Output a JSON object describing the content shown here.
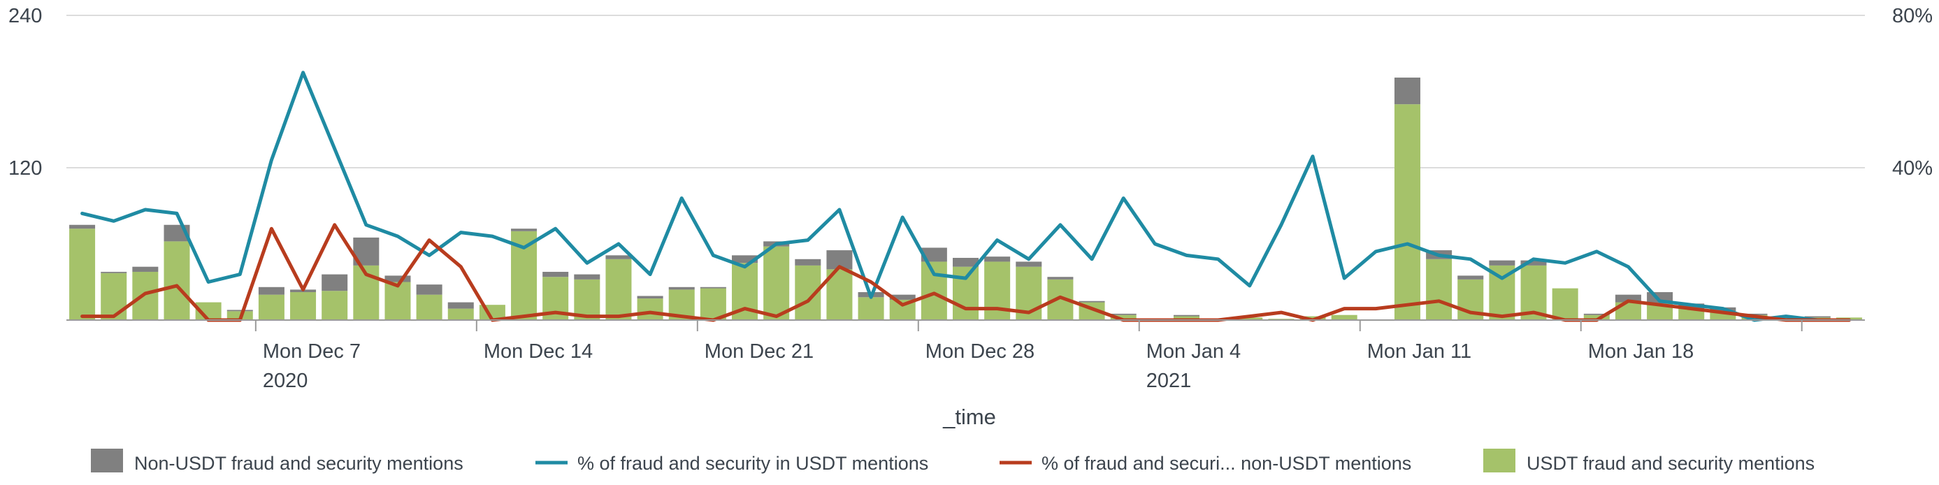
{
  "chart_data": {
    "type": "bar",
    "stacked": true,
    "xlabel": "_time",
    "x_ticks": [
      {
        "index": 6,
        "label": "Mon Dec 7",
        "sub": "2020"
      },
      {
        "index": 13,
        "label": "Mon Dec 14",
        "sub": ""
      },
      {
        "index": 20,
        "label": "Mon Dec 21",
        "sub": ""
      },
      {
        "index": 27,
        "label": "Mon Dec 28",
        "sub": ""
      },
      {
        "index": 34,
        "label": "Mon Jan 4",
        "sub": "2021"
      },
      {
        "index": 41,
        "label": "Mon Jan 11",
        "sub": ""
      },
      {
        "index": 48,
        "label": "Mon Jan 18",
        "sub": ""
      }
    ],
    "y_left": {
      "ticks": [
        "240",
        "120"
      ],
      "range": [
        0,
        240
      ]
    },
    "y_right": {
      "ticks": [
        "80%",
        "40%"
      ],
      "range": [
        0,
        80
      ]
    },
    "grid": true,
    "legend_position": "bottom",
    "legend": [
      {
        "label": "Non-USDT fraud and security mentions",
        "kind": "bar",
        "color": "#808080"
      },
      {
        "label": "% of fraud and security in USDT mentions",
        "kind": "line",
        "color": "#1f8ba3"
      },
      {
        "label": "% of fraud and securi... non-USDT mentions",
        "kind": "line",
        "color": "#b83c1e"
      },
      {
        "label": "USDT fraud and security mentions",
        "kind": "bar",
        "color": "#a5c26a"
      }
    ],
    "series": [
      {
        "name": "USDT fraud and security mentions",
        "axis": "left",
        "type": "bar",
        "color": "#a5c26a",
        "values": [
          72,
          37,
          38,
          62,
          14,
          7,
          20,
          22,
          23,
          43,
          30,
          20,
          9,
          12,
          70,
          34,
          32,
          48,
          17,
          24,
          25,
          45,
          58,
          43,
          40,
          18,
          16,
          46,
          42,
          46,
          42,
          32,
          14,
          4,
          1,
          3,
          0,
          2,
          1,
          3,
          4,
          0,
          170,
          48,
          32,
          43,
          43,
          25,
          4,
          14,
          13,
          9,
          7,
          4,
          2,
          2,
          2
        ]
      },
      {
        "name": "Non-USDT fraud and security mentions",
        "axis": "left",
        "type": "bar",
        "color": "#808080",
        "values": [
          3,
          1,
          4,
          13,
          0,
          1,
          6,
          2,
          13,
          22,
          5,
          8,
          5,
          0,
          2,
          4,
          4,
          3,
          2,
          2,
          1,
          6,
          4,
          5,
          15,
          4,
          4,
          11,
          7,
          4,
          4,
          2,
          1,
          1,
          0,
          1,
          0,
          0,
          0,
          0,
          0,
          0,
          21,
          7,
          3,
          4,
          4,
          0,
          1,
          6,
          9,
          4,
          3,
          1,
          0,
          1,
          0
        ]
      },
      {
        "name": "% of fraud and security in USDT mentions",
        "axis": "right",
        "type": "line",
        "color": "#1f8ba3",
        "values": [
          28,
          26,
          29,
          28,
          10,
          12,
          42,
          65,
          45,
          25,
          22,
          17,
          23,
          22,
          19,
          24,
          15,
          20,
          12,
          32,
          17,
          14,
          20,
          21,
          29,
          6,
          27,
          12,
          11,
          21,
          16,
          25,
          16,
          32,
          20,
          17,
          16,
          9,
          25,
          43,
          11,
          18,
          20,
          17,
          16,
          11,
          16,
          15,
          18,
          14,
          5,
          4,
          3,
          0,
          1,
          0,
          0
        ]
      },
      {
        "name": "% of fraud and securi... non-USDT mentions",
        "axis": "right",
        "type": "line",
        "color": "#b83c1e",
        "values": [
          1,
          1,
          7,
          9,
          0,
          0,
          24,
          8,
          25,
          12,
          9,
          21,
          14,
          0,
          1,
          2,
          1,
          1,
          2,
          1,
          0,
          3,
          1,
          5,
          14,
          10,
          4,
          7,
          3,
          3,
          2,
          6,
          3,
          0,
          0,
          0,
          0,
          1,
          2,
          0,
          3,
          3,
          4,
          5,
          2,
          1,
          2,
          0,
          0,
          5,
          4,
          3,
          2,
          1,
          0,
          0,
          0
        ]
      }
    ]
  }
}
